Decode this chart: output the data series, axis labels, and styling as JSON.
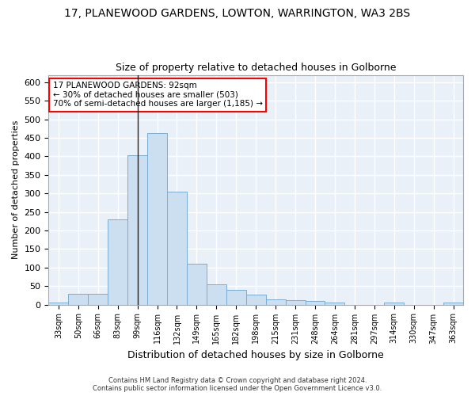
{
  "title1": "17, PLANEWOOD GARDENS, LOWTON, WARRINGTON, WA3 2BS",
  "title2": "Size of property relative to detached houses in Golborne",
  "xlabel": "Distribution of detached houses by size in Golborne",
  "ylabel": "Number of detached properties",
  "bar_color": "#ccdff0",
  "bar_edge_color": "#7aadd4",
  "categories": [
    "33sqm",
    "50sqm",
    "66sqm",
    "83sqm",
    "99sqm",
    "116sqm",
    "132sqm",
    "149sqm",
    "165sqm",
    "182sqm",
    "198sqm",
    "215sqm",
    "231sqm",
    "248sqm",
    "264sqm",
    "281sqm",
    "297sqm",
    "314sqm",
    "330sqm",
    "347sqm",
    "363sqm"
  ],
  "values": [
    5,
    30,
    30,
    230,
    403,
    463,
    305,
    110,
    54,
    40,
    27,
    14,
    12,
    10,
    6,
    0,
    0,
    5,
    0,
    0,
    5
  ],
  "ylim": [
    0,
    620
  ],
  "yticks": [
    0,
    50,
    100,
    150,
    200,
    250,
    300,
    350,
    400,
    450,
    500,
    550,
    600
  ],
  "annotation_line1": "17 PLANEWOOD GARDENS: 92sqm",
  "annotation_line2": "← 30% of detached houses are smaller (503)",
  "annotation_line3": "70% of semi-detached houses are larger (1,185) →",
  "footer1": "Contains HM Land Registry data © Crown copyright and database right 2024.",
  "footer2": "Contains public sector information licensed under the Open Government Licence v3.0.",
  "background_color": "#eaf0f8",
  "grid_color": "#ffffff",
  "fig_background": "#ffffff"
}
